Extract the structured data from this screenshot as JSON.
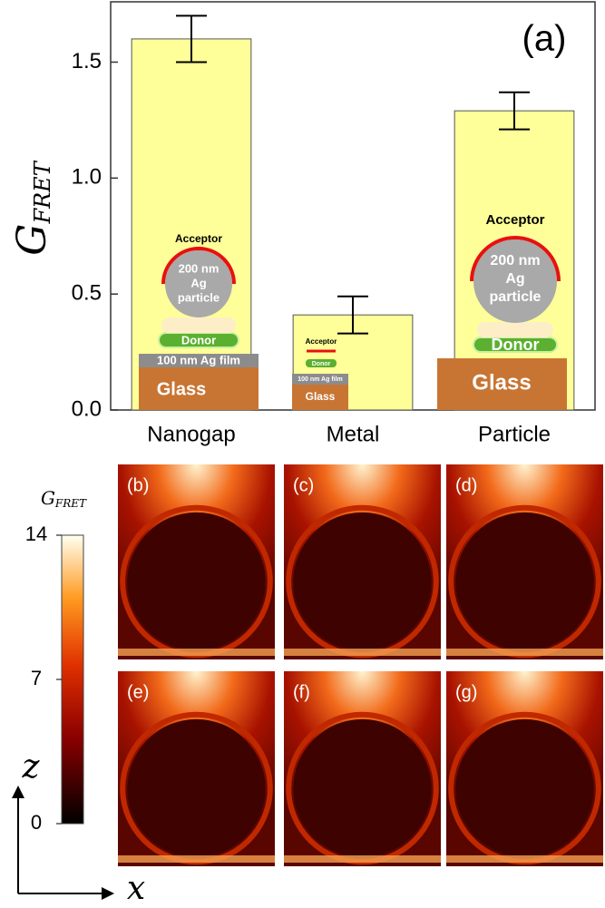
{
  "chart_data": {
    "type": "bar",
    "y_label": "G",
    "y_label_sub": "FRET",
    "annotation": "(a)",
    "categories": [
      "Nanogap",
      "Metal",
      "Particle"
    ],
    "values": [
      1.6,
      0.41,
      1.29
    ],
    "errors": [
      0.1,
      0.08,
      0.08
    ],
    "color": "#ffff99",
    "ylim": [
      0,
      1.76
    ],
    "yticks": [
      {
        "value": 0,
        "label": "0.0"
      },
      {
        "value": 0.5,
        "label": "0.5"
      },
      {
        "value": 1,
        "label": "1.0"
      },
      {
        "value": 1.5,
        "label": "1.5"
      }
    ],
    "grid": false
  },
  "insets": {
    "nanogap": {
      "acceptor": "Acceptor",
      "particle": [
        "200 nm",
        "Ag",
        "particle"
      ],
      "donor": "Donor",
      "film": "100 nm Ag film",
      "glass": "Glass"
    },
    "metal": {
      "acceptor": "Acceptor",
      "donor": "Donor",
      "film": "100 nm Ag film",
      "glass": "Glass"
    },
    "particle": {
      "acceptor": "Acceptor",
      "particle": [
        "200 nm",
        "Ag",
        "particle"
      ],
      "donor": "Donor",
      "glass": "Glass"
    }
  },
  "colorbar": {
    "title": "G",
    "title_sub": "FRET",
    "lim": [
      0,
      14
    ],
    "ticks": [
      0,
      7,
      14
    ]
  },
  "panels": [
    "(b)",
    "(c)",
    "(d)",
    "(e)",
    "(f)",
    "(g)"
  ],
  "axes_indicator": {
    "vertical": "z",
    "horizontal": "x"
  }
}
